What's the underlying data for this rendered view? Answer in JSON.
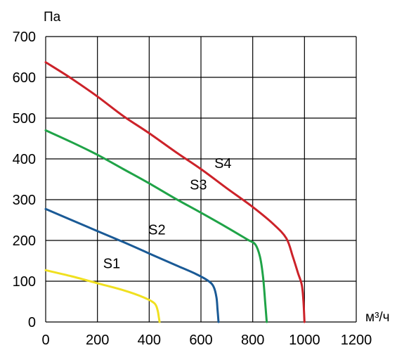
{
  "chart_data": {
    "type": "line",
    "xlabel": "м³/ч",
    "ylabel": "Па",
    "xlim": [
      0,
      1200
    ],
    "ylim": [
      0,
      700
    ],
    "x_ticks": [
      0,
      200,
      400,
      600,
      800,
      1000,
      1200
    ],
    "y_ticks": [
      0,
      100,
      200,
      300,
      400,
      500,
      600,
      700
    ],
    "grid": true,
    "legend": "none",
    "series": [
      {
        "name": "S1",
        "color": "#f0e020",
        "points": [
          [
            0,
            127
          ],
          [
            100,
            112
          ],
          [
            200,
            95
          ],
          [
            300,
            78
          ],
          [
            380,
            60
          ],
          [
            420,
            46
          ],
          [
            432,
            30
          ],
          [
            437,
            12
          ],
          [
            440,
            0
          ]
        ]
      },
      {
        "name": "S2",
        "color": "#1a5a96",
        "points": [
          [
            0,
            277
          ],
          [
            100,
            250
          ],
          [
            200,
            223
          ],
          [
            300,
            196
          ],
          [
            400,
            168
          ],
          [
            500,
            140
          ],
          [
            580,
            118
          ],
          [
            630,
            100
          ],
          [
            650,
            85
          ],
          [
            660,
            60
          ],
          [
            664,
            30
          ],
          [
            668,
            0
          ]
        ]
      },
      {
        "name": "S3",
        "color": "#1fa347",
        "points": [
          [
            0,
            470
          ],
          [
            100,
            441
          ],
          [
            200,
            410
          ],
          [
            300,
            375
          ],
          [
            400,
            340
          ],
          [
            500,
            303
          ],
          [
            600,
            268
          ],
          [
            700,
            232
          ],
          [
            780,
            202
          ],
          [
            810,
            190
          ],
          [
            828,
            160
          ],
          [
            840,
            110
          ],
          [
            848,
            50
          ],
          [
            854,
            0
          ]
        ]
      },
      {
        "name": "S4",
        "color": "#cc2229",
        "points": [
          [
            0,
            637
          ],
          [
            100,
            597
          ],
          [
            200,
            553
          ],
          [
            300,
            505
          ],
          [
            400,
            463
          ],
          [
            500,
            418
          ],
          [
            600,
            375
          ],
          [
            700,
            328
          ],
          [
            800,
            282
          ],
          [
            880,
            240
          ],
          [
            930,
            205
          ],
          [
            955,
            160
          ],
          [
            975,
            120
          ],
          [
            990,
            90
          ],
          [
            996,
            50
          ],
          [
            1000,
            0
          ]
        ]
      }
    ],
    "annotations": [
      {
        "text": "S1",
        "x": 255,
        "y": 132
      },
      {
        "text": "S2",
        "x": 430,
        "y": 215
      },
      {
        "text": "S3",
        "x": 590,
        "y": 325
      },
      {
        "text": "S4",
        "x": 685,
        "y": 378
      }
    ]
  }
}
